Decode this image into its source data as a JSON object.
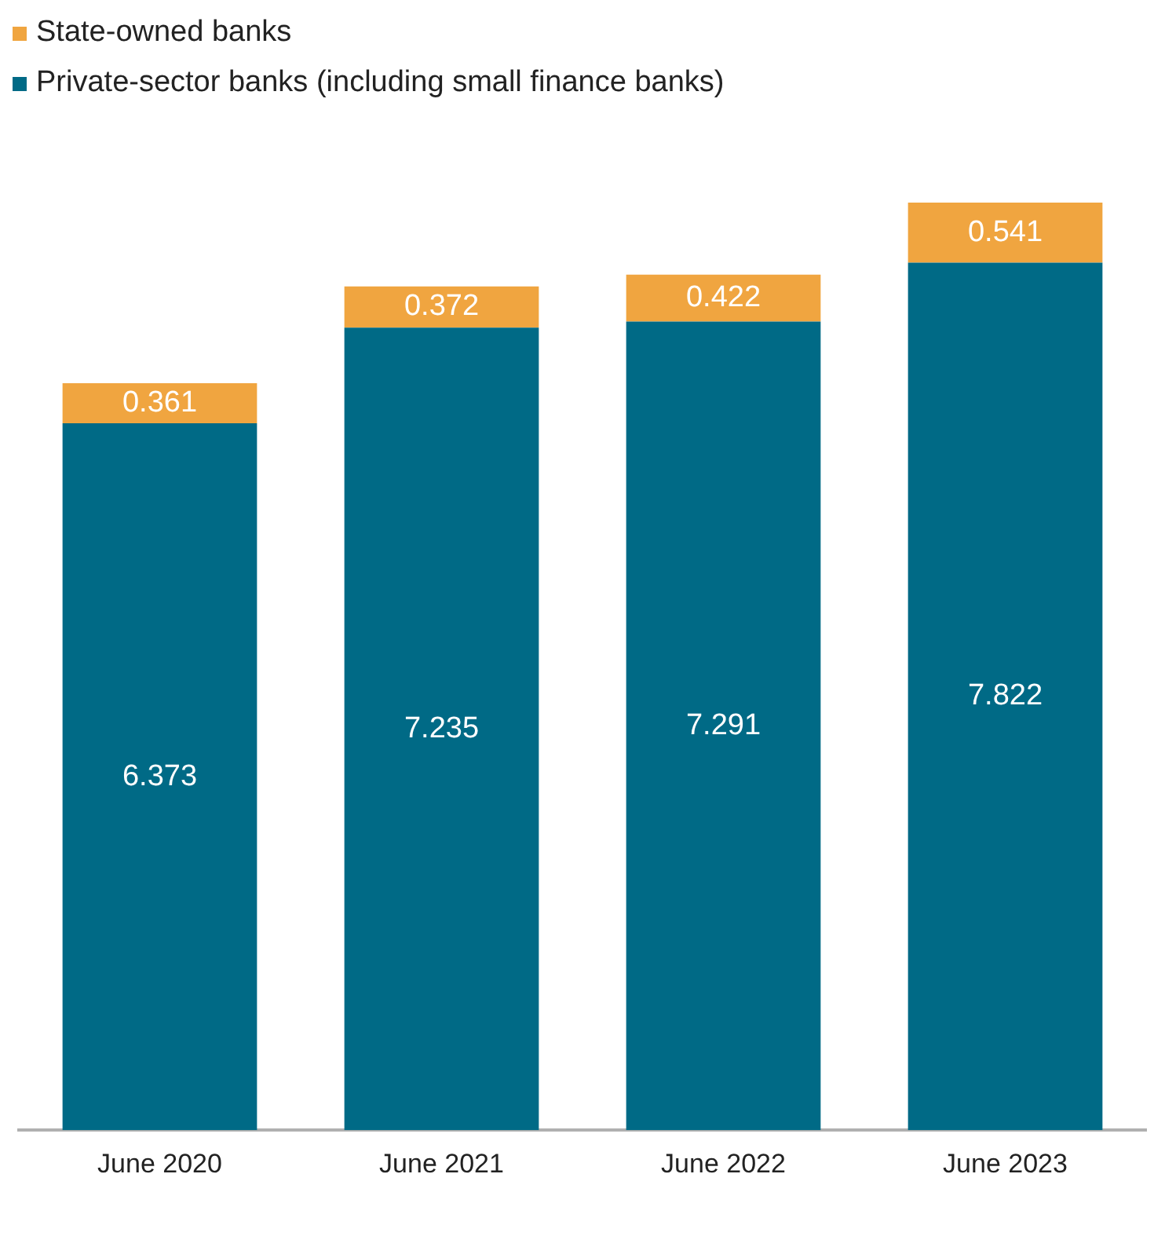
{
  "chart_data": {
    "type": "bar",
    "stacked": true,
    "categories": [
      "June 2020",
      "June 2021",
      "June 2022",
      "June 2023"
    ],
    "series": [
      {
        "name": "Private-sector banks (including small finance banks)",
        "color": "#006a86",
        "values": [
          6.373,
          7.235,
          7.291,
          7.822
        ]
      },
      {
        "name": "State-owned banks",
        "color": "#f0a540",
        "values": [
          0.361,
          0.372,
          0.422,
          0.541
        ]
      }
    ],
    "data_labels": true,
    "legend": "top left",
    "grid": false,
    "tick_labels": "x"
  }
}
